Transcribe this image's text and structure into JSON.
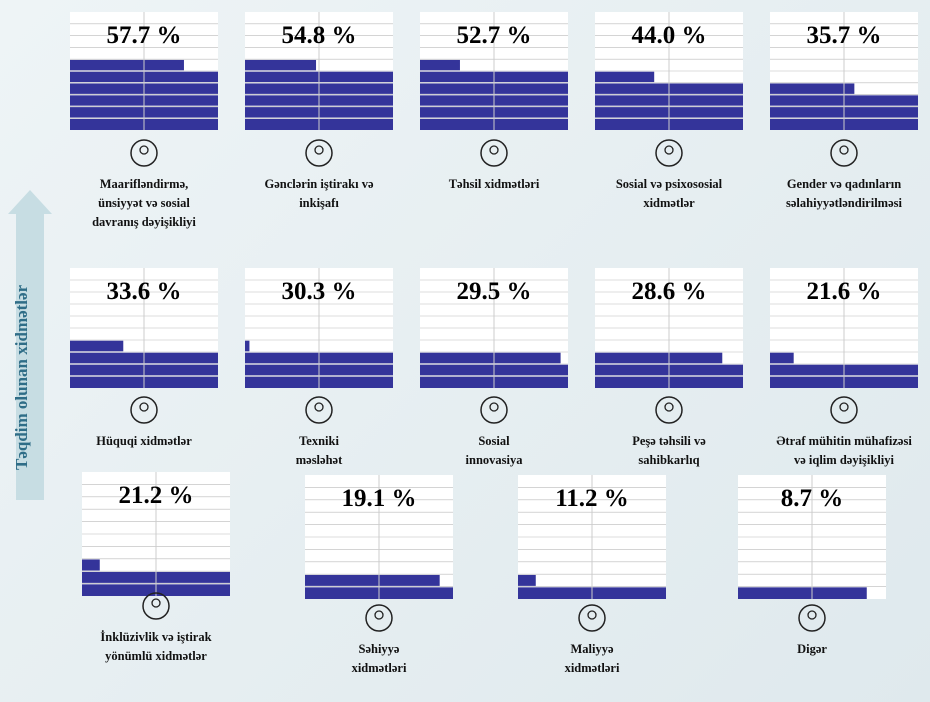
{
  "chart_data": {
    "type": "tiles",
    "axis_label": "Təqdim olunan xidmətlər",
    "categories": [
      "Maarifləndirmə, ünsiyyət və sosial davranış dəyişikliyi",
      "Gənclərin iştirakı və inkişafı",
      "Təhsil xidmətləri",
      "Sosial və psixososial xidmətlər",
      "Gender və qadınların səlahiyyətləndirilməsi",
      "Hüquqi xidmətlər",
      "Texniki məsləhət",
      "Sosial innovasiya",
      "Peşə təhsili və sahibkarlıq",
      "Ətraf mühitin mühafizəsi və iqlim dəyişikliyi",
      "İnklüzivlik və iştirak yönümlü xidmətlər",
      "Səhiyyə xidmətləri",
      "Maliyyə xidmətləri",
      "Digər"
    ],
    "values": [
      57.7,
      54.8,
      52.7,
      44.0,
      35.7,
      33.6,
      30.3,
      29.5,
      28.6,
      21.6,
      21.2,
      19.1,
      11.2,
      8.7
    ],
    "value_labels": [
      "57.7 %",
      "54.8 %",
      "52.7 %",
      "44.0 %",
      "35.7 %",
      "33.6 %",
      "30.3 %",
      "29.5 %",
      "28.6 %",
      "21.6 %",
      "21.2 %",
      "19.1 %",
      "11.2 %",
      "8.7 %"
    ],
    "ylim": [
      0,
      100
    ],
    "color": "#34349a"
  }
}
